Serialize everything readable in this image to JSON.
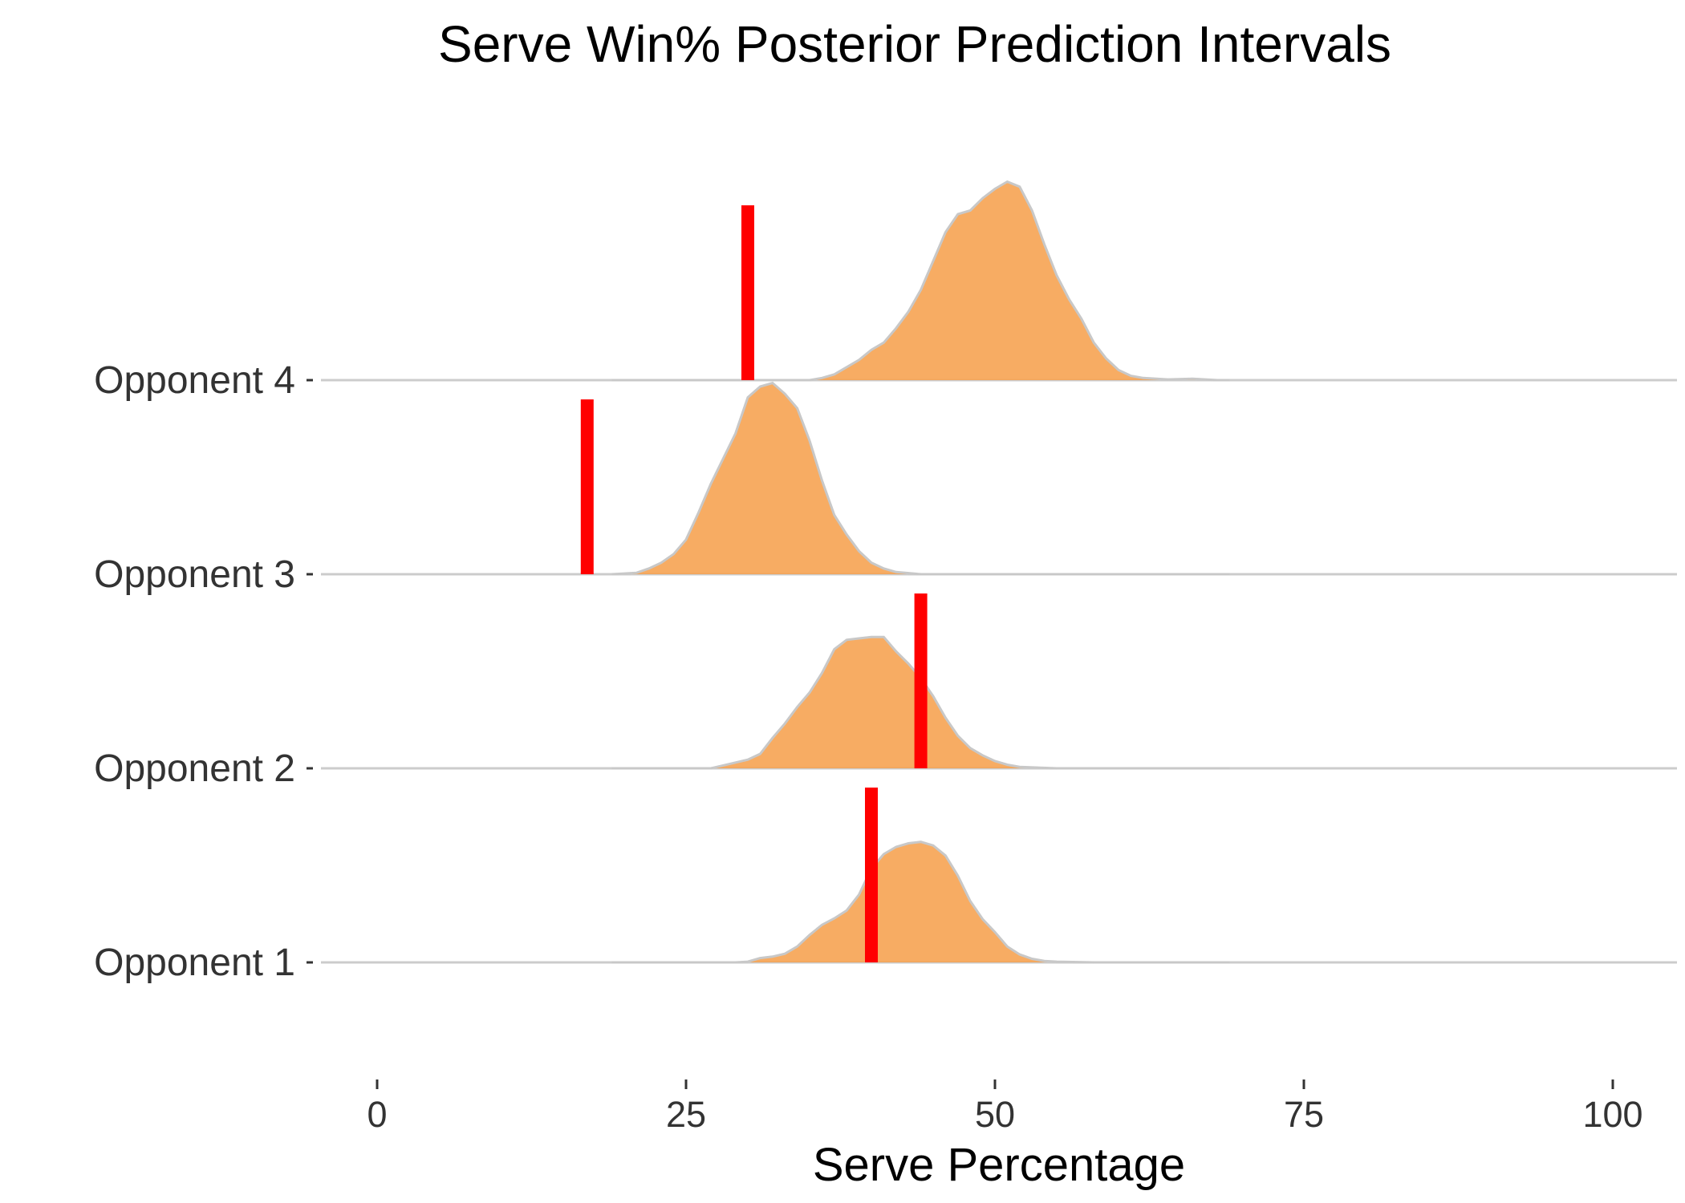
{
  "chart_data": {
    "type": "ridgeline",
    "title": "Serve Win% Posterior Prediction Intervals",
    "xlabel": "Serve Percentage",
    "ylabel": "",
    "xlim": [
      -10,
      105
    ],
    "xticks": [
      0,
      25,
      50,
      75,
      100
    ],
    "grid": false,
    "legend": "none",
    "colors": {
      "fill": "#f6a04d",
      "outline": "#c8c8c8",
      "marker": "#ff0000",
      "baseline": "#cccccc",
      "axis_text": "#333333"
    },
    "categories": [
      "Opponent 1",
      "Opponent 2",
      "Opponent 3",
      "Opponent 4"
    ],
    "series": [
      {
        "category": "Opponent 1",
        "observed": 40,
        "density": [
          [
            19,
            0
          ],
          [
            29,
            0
          ],
          [
            30,
            0.01
          ],
          [
            31,
            0.06
          ],
          [
            32,
            0.08
          ],
          [
            33,
            0.12
          ],
          [
            34,
            0.22
          ],
          [
            35,
            0.38
          ],
          [
            36,
            0.52
          ],
          [
            37,
            0.61
          ],
          [
            38,
            0.72
          ],
          [
            39,
            0.94
          ],
          [
            40,
            1.3
          ],
          [
            41,
            1.5
          ],
          [
            42,
            1.6
          ],
          [
            43,
            1.65
          ],
          [
            44,
            1.67
          ],
          [
            45,
            1.62
          ],
          [
            46,
            1.48
          ],
          [
            47,
            1.2
          ],
          [
            48,
            0.85
          ],
          [
            49,
            0.6
          ],
          [
            50,
            0.42
          ],
          [
            51,
            0.22
          ],
          [
            52,
            0.11
          ],
          [
            53,
            0.05
          ],
          [
            54,
            0.02
          ],
          [
            55,
            0.01
          ],
          [
            58,
            0
          ],
          [
            69,
            0
          ]
        ]
      },
      {
        "category": "Opponent 2",
        "observed": 44,
        "density": [
          [
            19,
            0
          ],
          [
            27,
            0
          ],
          [
            28,
            0.04
          ],
          [
            29,
            0.08
          ],
          [
            30,
            0.12
          ],
          [
            31,
            0.2
          ],
          [
            32,
            0.42
          ],
          [
            33,
            0.62
          ],
          [
            34,
            0.85
          ],
          [
            35,
            1.05
          ],
          [
            36,
            1.32
          ],
          [
            37,
            1.65
          ],
          [
            38,
            1.78
          ],
          [
            39,
            1.8
          ],
          [
            40,
            1.82
          ],
          [
            41,
            1.82
          ],
          [
            42,
            1.62
          ],
          [
            43,
            1.45
          ],
          [
            44,
            1.25
          ],
          [
            45,
            1.0
          ],
          [
            46,
            0.7
          ],
          [
            47,
            0.45
          ],
          [
            48,
            0.28
          ],
          [
            49,
            0.18
          ],
          [
            50,
            0.1
          ],
          [
            51,
            0.05
          ],
          [
            52,
            0.02
          ],
          [
            55,
            0
          ],
          [
            69,
            0
          ]
        ]
      },
      {
        "category": "Opponent 3",
        "observed": 17,
        "density": [
          [
            19,
            0
          ],
          [
            21,
            0.02
          ],
          [
            22,
            0.08
          ],
          [
            23,
            0.16
          ],
          [
            24,
            0.28
          ],
          [
            25,
            0.48
          ],
          [
            26,
            0.85
          ],
          [
            27,
            1.25
          ],
          [
            28,
            1.6
          ],
          [
            29,
            1.95
          ],
          [
            30,
            2.45
          ],
          [
            31,
            2.6
          ],
          [
            32,
            2.65
          ],
          [
            33,
            2.5
          ],
          [
            34,
            2.3
          ],
          [
            35,
            1.85
          ],
          [
            36,
            1.3
          ],
          [
            37,
            0.82
          ],
          [
            38,
            0.55
          ],
          [
            39,
            0.32
          ],
          [
            40,
            0.16
          ],
          [
            41,
            0.08
          ],
          [
            42,
            0.03
          ],
          [
            44,
            0
          ],
          [
            69,
            0
          ]
        ]
      },
      {
        "category": "Opponent 4",
        "observed": 30,
        "density": [
          [
            19,
            0
          ],
          [
            35,
            0
          ],
          [
            36,
            0.03
          ],
          [
            37,
            0.08
          ],
          [
            38,
            0.18
          ],
          [
            39,
            0.28
          ],
          [
            40,
            0.42
          ],
          [
            41,
            0.52
          ],
          [
            42,
            0.72
          ],
          [
            43,
            0.95
          ],
          [
            44,
            1.25
          ],
          [
            45,
            1.65
          ],
          [
            46,
            2.05
          ],
          [
            47,
            2.3
          ],
          [
            48,
            2.35
          ],
          [
            49,
            2.52
          ],
          [
            50,
            2.65
          ],
          [
            51,
            2.75
          ],
          [
            52,
            2.68
          ],
          [
            53,
            2.35
          ],
          [
            54,
            1.88
          ],
          [
            55,
            1.45
          ],
          [
            56,
            1.12
          ],
          [
            57,
            0.85
          ],
          [
            58,
            0.52
          ],
          [
            59,
            0.3
          ],
          [
            60,
            0.14
          ],
          [
            61,
            0.06
          ],
          [
            62,
            0.03
          ],
          [
            64,
            0.01
          ],
          [
            66,
            0.02
          ],
          [
            68,
            0
          ],
          [
            69,
            0
          ]
        ]
      }
    ]
  }
}
